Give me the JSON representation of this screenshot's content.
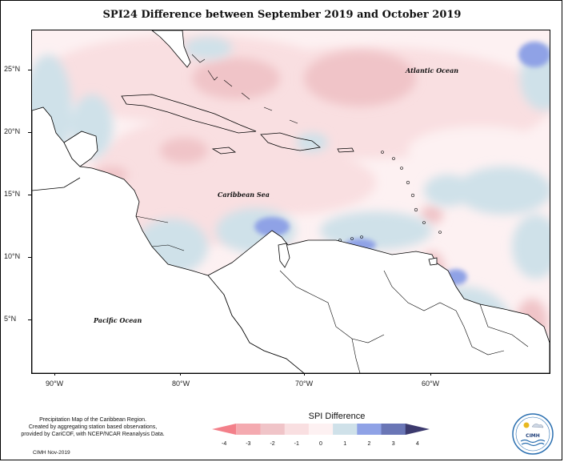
{
  "title": "SPI24 Difference between September 2019 and October 2019",
  "map_labels": {
    "atlantic": "Atlantic Ocean",
    "caribbean": "Caribbean Sea",
    "pacific": "Pacific Ocean"
  },
  "axes": {
    "latitudes": [
      "25°N",
      "20°N",
      "15°N",
      "10°N",
      "5°N"
    ],
    "longitudes": [
      "90°W",
      "80°W",
      "70°W",
      "60°W"
    ]
  },
  "legend": {
    "title": "SPI Difference",
    "ticks": [
      "-4",
      "-3",
      "-2",
      "-1",
      "0",
      "1",
      "2",
      "3",
      "4"
    ],
    "colors": [
      "#f3808a",
      "#f4aab0",
      "#f0c4c8",
      "#f9dfe1",
      "#fdf1f2",
      "#cfe1e9",
      "#8fa2e6",
      "#6a76b6",
      "#3c3a6e"
    ]
  },
  "info": {
    "line1": "Precipitation Map of the Caribbean Region.",
    "line2": "Created by aggregating station based observations,",
    "line3": "provided by CariCOF, with NCEP/NCAR Reanalysis Data."
  },
  "credit": "CIMH Nov-2019",
  "logo_text": "CIMH"
}
